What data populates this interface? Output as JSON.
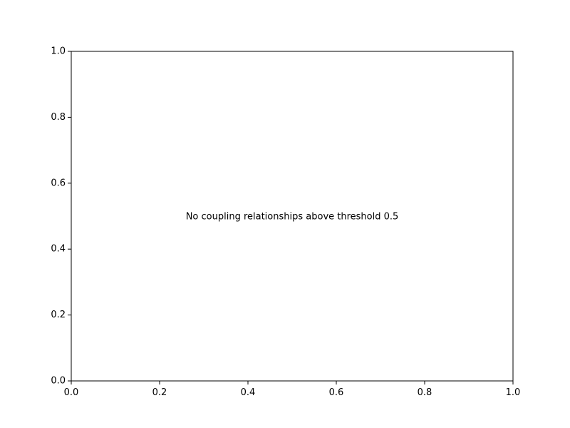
{
  "chart_data": {
    "type": "scatter",
    "title": "",
    "xlabel": "",
    "ylabel": "",
    "xlim": [
      0.0,
      1.0
    ],
    "ylim": [
      0.0,
      1.0
    ],
    "x_ticks": [
      0.0,
      0.2,
      0.4,
      0.6,
      0.8,
      1.0
    ],
    "y_ticks": [
      0.0,
      0.2,
      0.4,
      0.6,
      0.8,
      1.0
    ],
    "x_tick_labels": [
      "0.0",
      "0.2",
      "0.4",
      "0.6",
      "0.8",
      "1.0"
    ],
    "y_tick_labels": [
      "0.0",
      "0.2",
      "0.4",
      "0.6",
      "0.8",
      "1.0"
    ],
    "series": [],
    "grid": false,
    "annotation": {
      "text": "No coupling relationships above threshold 0.5",
      "x": 0.5,
      "y": 0.5
    }
  }
}
